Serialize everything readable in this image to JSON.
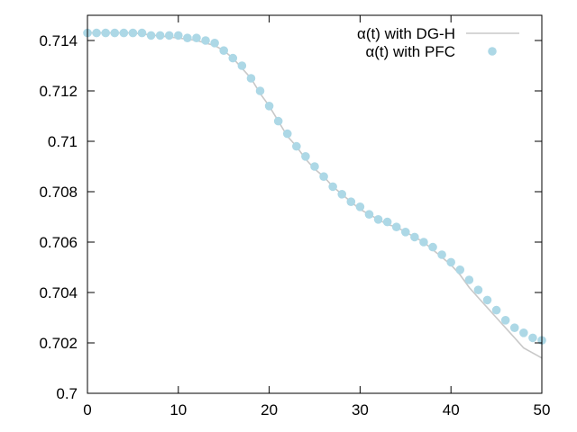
{
  "chart_data": {
    "type": "line",
    "title": "",
    "xlabel": "",
    "ylabel": "",
    "xlim": [
      0,
      50
    ],
    "ylim": [
      0.7,
      0.715
    ],
    "xticks": [
      0,
      10,
      20,
      30,
      40,
      50
    ],
    "yticks": [
      0.7,
      0.702,
      0.704,
      0.706,
      0.708,
      0.71,
      0.712,
      0.714
    ],
    "ytick_labels": [
      "0.7",
      "0.702",
      "0.704",
      "0.706",
      "0.708",
      "0.71",
      "0.712",
      "0.714"
    ],
    "grid": false,
    "legend_position": "top-right",
    "series": [
      {
        "name": "α(t) with DG-H",
        "style": "line",
        "color": "#c8c8c8",
        "x": [
          0,
          5,
          10,
          12,
          13,
          14,
          15,
          16,
          17,
          18,
          19,
          20,
          21,
          22,
          23,
          24,
          25,
          26,
          27,
          28,
          29,
          30,
          31,
          32,
          33,
          34,
          35,
          36,
          37,
          38,
          39,
          40,
          41,
          42,
          43,
          44,
          45,
          46,
          47,
          48,
          49,
          50
        ],
        "y": [
          0.7143,
          0.7143,
          0.7141,
          0.714,
          0.7139,
          0.7138,
          0.7136,
          0.7133,
          0.7129,
          0.7125,
          0.7119,
          0.7114,
          0.7108,
          0.7102,
          0.7098,
          0.7093,
          0.7089,
          0.7086,
          0.7082,
          0.7079,
          0.7076,
          0.7073,
          0.7071,
          0.7069,
          0.7067,
          0.7066,
          0.7064,
          0.7062,
          0.706,
          0.7057,
          0.7054,
          0.7051,
          0.7047,
          0.7042,
          0.7038,
          0.7034,
          0.703,
          0.7026,
          0.7022,
          0.7018,
          0.7016,
          0.7014
        ]
      },
      {
        "name": "α(t) with PFC",
        "style": "markers",
        "color": "#add8e6",
        "x": [
          0,
          1,
          2,
          3,
          4,
          5,
          6,
          7,
          8,
          9,
          10,
          11,
          12,
          13,
          14,
          15,
          16,
          17,
          18,
          19,
          20,
          21,
          22,
          23,
          24,
          25,
          26,
          27,
          28,
          29,
          30,
          31,
          32,
          33,
          34,
          35,
          36,
          37,
          38,
          39,
          40,
          41,
          42,
          43,
          44,
          45,
          46,
          47,
          48,
          49,
          50
        ],
        "y": [
          0.7143,
          0.7143,
          0.7143,
          0.7143,
          0.7143,
          0.7143,
          0.7143,
          0.7142,
          0.7142,
          0.7142,
          0.7142,
          0.7141,
          0.7141,
          0.714,
          0.7139,
          0.7136,
          0.7133,
          0.713,
          0.7125,
          0.712,
          0.7114,
          0.7108,
          0.7103,
          0.7098,
          0.7094,
          0.709,
          0.7086,
          0.7082,
          0.7079,
          0.7076,
          0.7074,
          0.7071,
          0.7069,
          0.7068,
          0.7066,
          0.7064,
          0.7062,
          0.706,
          0.7058,
          0.7055,
          0.7052,
          0.7049,
          0.7045,
          0.7041,
          0.7037,
          0.7033,
          0.7029,
          0.7026,
          0.7024,
          0.7022,
          0.7021
        ]
      }
    ]
  }
}
